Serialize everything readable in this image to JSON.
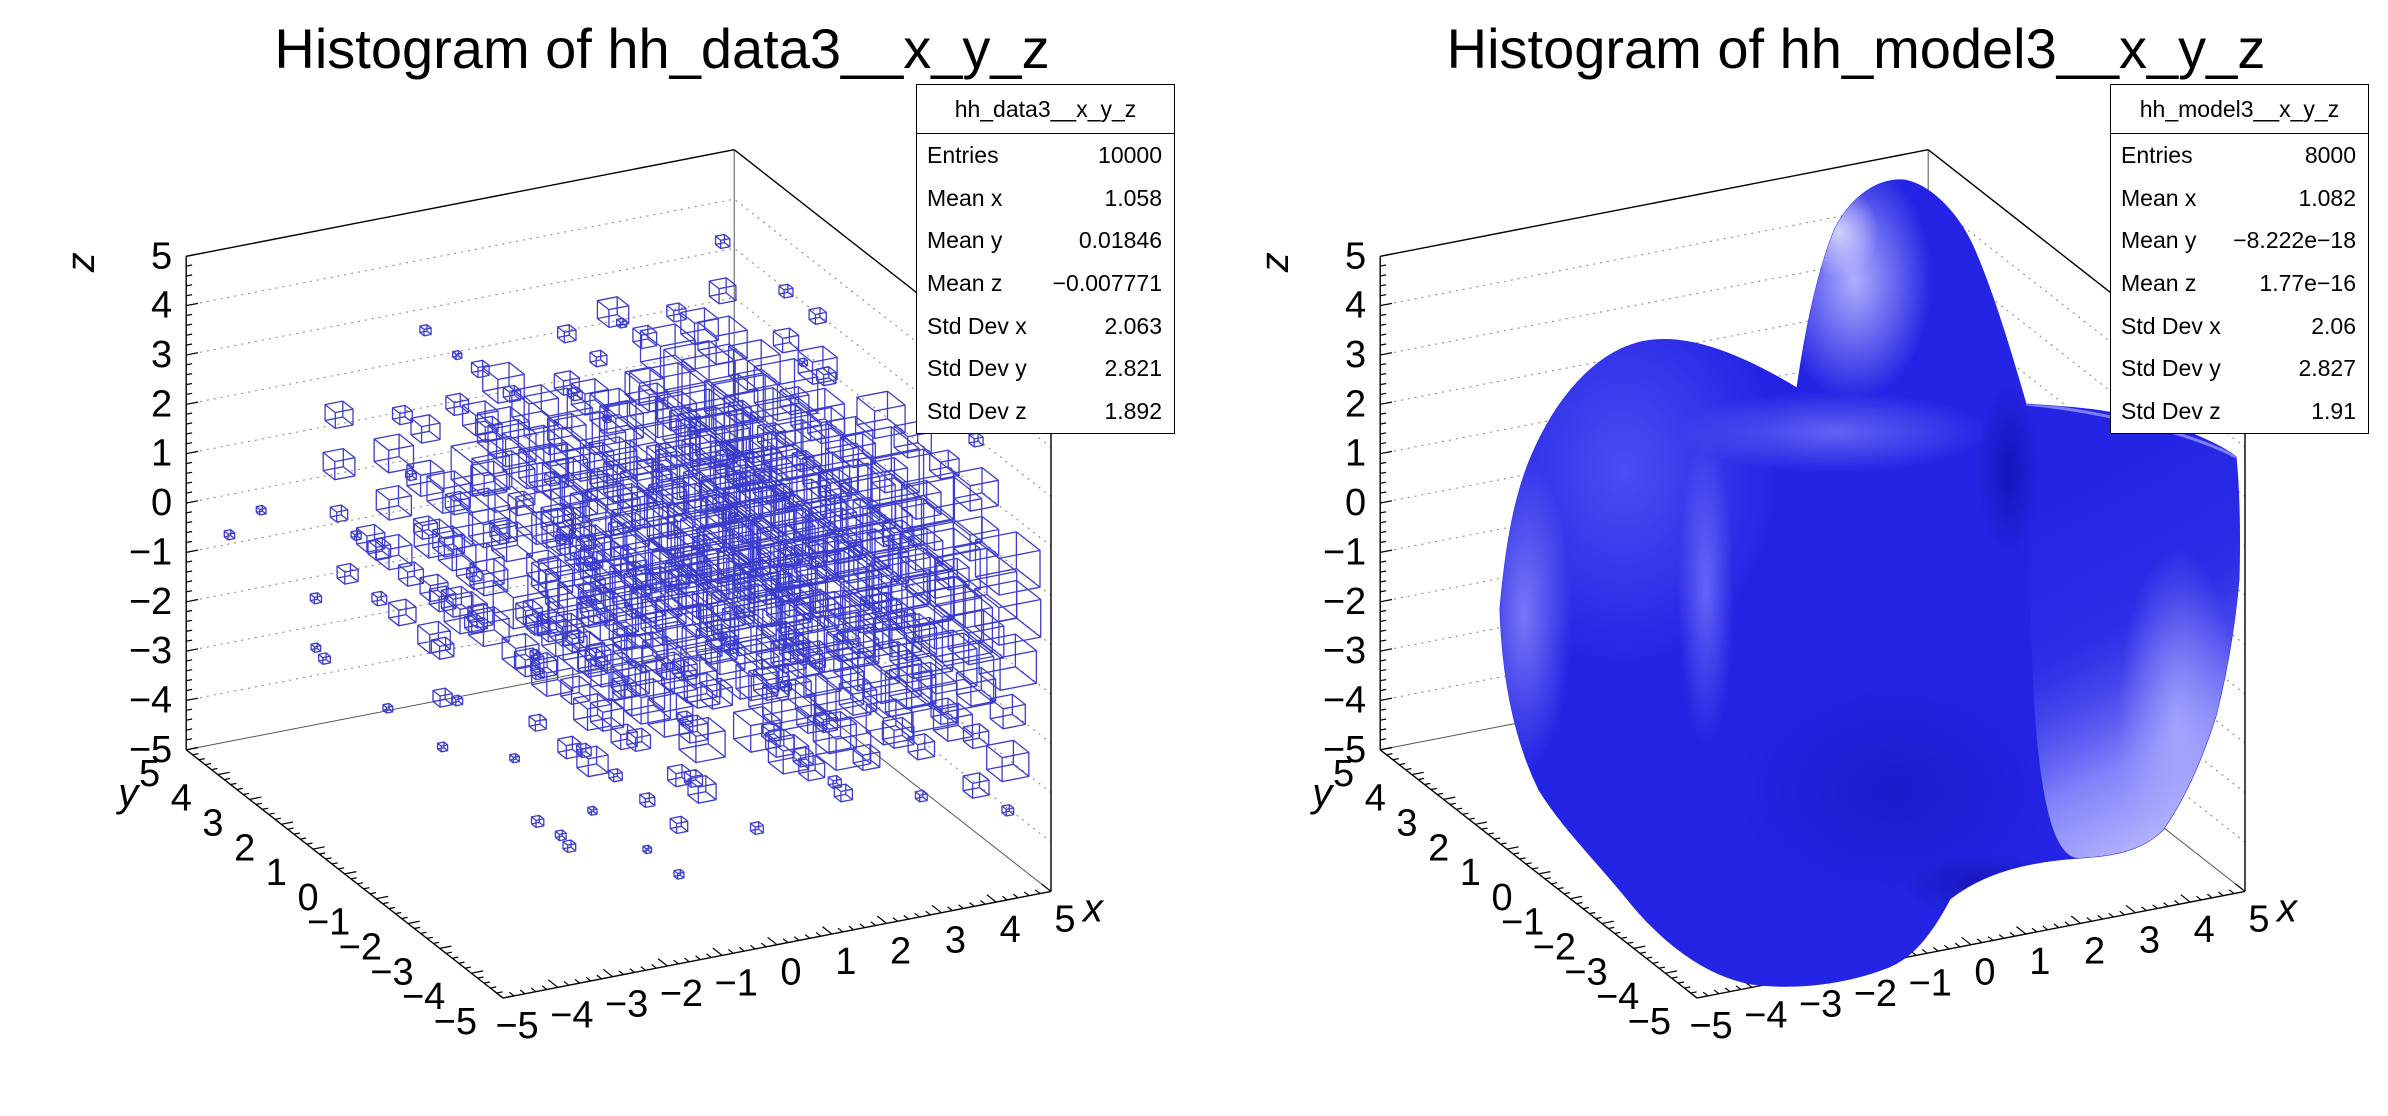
{
  "colors": {
    "frame": "#000000",
    "grid": "#808080",
    "box_line": "#3d3dcc",
    "surface": "#2424e4",
    "surface_light": "#b0b0ff"
  },
  "panels": [
    {
      "title": "Histogram of hh_data3__x_y_z",
      "plot_type": "box3d",
      "axes": {
        "x_title": "x",
        "y_title": "y",
        "z_title": "z",
        "tick_labels": [
          "−5",
          "−4",
          "−3",
          "−2",
          "−1",
          "0",
          "1",
          "2",
          "3",
          "4",
          "5"
        ]
      },
      "stats": {
        "title": "hh_data3__x_y_z",
        "rows": [
          {
            "label": "Entries",
            "value": "10000"
          },
          {
            "label": "Mean x",
            "value": "1.058"
          },
          {
            "label": "Mean y",
            "value": "0.01846"
          },
          {
            "label": "Mean z",
            "value": "−0.007771"
          },
          {
            "label": "Std Dev x",
            "value": "2.063"
          },
          {
            "label": "Std Dev y",
            "value": "2.821"
          },
          {
            "label": "Std Dev z",
            "value": "1.892"
          }
        ]
      }
    },
    {
      "title": "Histogram of hh_model3__x_y_z",
      "plot_type": "isosurface",
      "axes": {
        "x_title": "x",
        "y_title": "y",
        "z_title": "z",
        "tick_labels": [
          "−5",
          "−4",
          "−3",
          "−2",
          "−1",
          "0",
          "1",
          "2",
          "3",
          "4",
          "5"
        ]
      },
      "stats": {
        "title": "hh_model3__x_y_z",
        "rows": [
          {
            "label": "Entries",
            "value": "8000"
          },
          {
            "label": "Mean x",
            "value": "1.082"
          },
          {
            "label": "Mean y",
            "value": "−8.222e−18"
          },
          {
            "label": "Mean z",
            "value": "1.77e−16"
          },
          {
            "label": "Std Dev x",
            "value": "2.06"
          },
          {
            "label": "Std Dev y",
            "value": "2.827"
          },
          {
            "label": "Std Dev z",
            "value": "1.91"
          }
        ]
      }
    }
  ],
  "chart_data": [
    {
      "type": "3d-histogram-box",
      "title": "Histogram of hh_data3__x_y_z",
      "histogram_name": "hh_data3__x_y_z",
      "xlabel": "x",
      "ylabel": "y",
      "zlabel": "z",
      "xlim": [
        -5,
        5
      ],
      "ylim": [
        -5,
        5
      ],
      "zlim": [
        -5,
        5
      ],
      "x_ticks": [
        -5,
        -4,
        -3,
        -2,
        -1,
        0,
        1,
        2,
        3,
        4,
        5
      ],
      "y_ticks": [
        -5,
        -4,
        -3,
        -2,
        -1,
        0,
        1,
        2,
        3,
        4,
        5
      ],
      "z_ticks": [
        -5,
        -4,
        -3,
        -2,
        -1,
        0,
        1,
        2,
        3,
        4,
        5
      ],
      "grid": "dotted horizontal lines at each z tick on the two back walls",
      "legend": "none",
      "marker": "blue wireframe boxes, linear size proportional to bin content",
      "stats": {
        "entries": 10000,
        "mean_x": 1.058,
        "mean_y": 0.01846,
        "mean_z": -0.007771,
        "std_dev_x": 2.063,
        "std_dev_y": 2.821,
        "std_dev_z": 1.892
      },
      "distribution_summary": "bin contents increase toward +x (mean x ≈ 1.06), roughly uniform in y, concentrated around z = 0 (std dev z ≈ 1.89)"
    },
    {
      "type": "3d-isosurface",
      "title": "Histogram of hh_model3__x_y_z",
      "histogram_name": "hh_model3__x_y_z",
      "xlabel": "x",
      "ylabel": "y",
      "zlabel": "z",
      "xlim": [
        -5,
        5
      ],
      "ylim": [
        -5,
        5
      ],
      "zlim": [
        -5,
        5
      ],
      "x_ticks": [
        -5,
        -4,
        -3,
        -2,
        -1,
        0,
        1,
        2,
        3,
        4,
        5
      ],
      "y_ticks": [
        -5,
        -4,
        -3,
        -2,
        -1,
        0,
        1,
        2,
        3,
        4,
        5
      ],
      "z_ticks": [
        -5,
        -4,
        -3,
        -2,
        -1,
        0,
        1,
        2,
        3,
        4,
        5
      ],
      "grid": "dotted horizontal lines at each z tick on the two back walls",
      "legend": "none",
      "surface_color": "#2424e4",
      "stats": {
        "entries": 8000,
        "mean_x": 1.082,
        "mean_y": -8.222e-18,
        "mean_z": 1.77e-16,
        "std_dev_x": 2.06,
        "std_dev_y": 2.827,
        "std_dev_z": 1.91
      },
      "distribution_summary": "smooth solid blue isosurface: a large central lobe, a dome rising toward z = +5 near the center, and a curved cylindrical sheet sweeping toward +x"
    }
  ]
}
